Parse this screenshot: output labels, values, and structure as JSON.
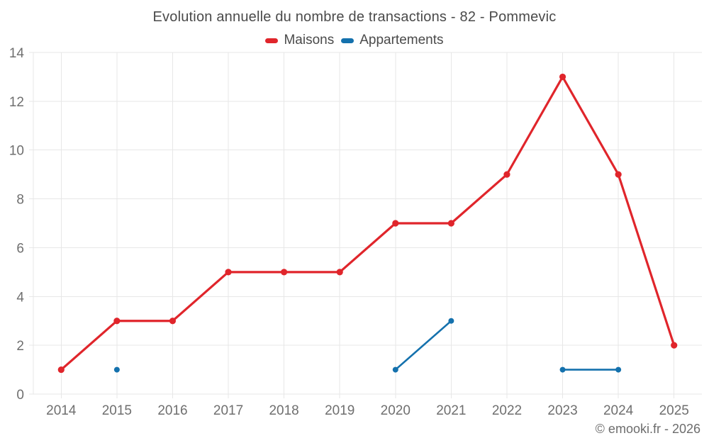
{
  "title": "Evolution annuelle du nombre de transactions - 82 - Pommevic",
  "legend": {
    "items": [
      {
        "label": "Maisons",
        "color": "#e0252b"
      },
      {
        "label": "Appartements",
        "color": "#1471ad"
      }
    ]
  },
  "footer": "© emooki.fr - 2026",
  "chart_data": {
    "type": "line",
    "title": "Evolution annuelle du nombre de transactions - 82 - Pommevic",
    "categories": [
      "2014",
      "2015",
      "2016",
      "2017",
      "2018",
      "2019",
      "2020",
      "2021",
      "2022",
      "2023",
      "2024",
      "2025"
    ],
    "series": [
      {
        "name": "Maisons",
        "color": "#e0252b",
        "line_width": 3.2,
        "marker_radius": 4.6,
        "values": [
          1,
          3,
          3,
          5,
          5,
          5,
          7,
          7,
          9,
          13,
          9,
          2
        ]
      },
      {
        "name": "Appartements",
        "color": "#1471ad",
        "line_width": 2.6,
        "marker_radius": 4.0,
        "values": [
          null,
          1,
          null,
          null,
          null,
          null,
          1,
          3,
          null,
          1,
          1,
          null
        ]
      }
    ],
    "xlabel": "",
    "ylabel": "",
    "ylim": [
      0,
      14
    ],
    "yticks": [
      0,
      2,
      4,
      6,
      8,
      10,
      12,
      14
    ],
    "grid": true,
    "legend_position": "top",
    "notes": "gaps in Appartements series break the line; isolated points drawn as dots"
  },
  "colors": {
    "grid": "#e7e7e7",
    "axis_labels": "#6f6f6f",
    "title_text": "#4a4a4a",
    "legend_text": "#4a4a4a",
    "footer_text": "#6d6d6d",
    "background": "#ffffff"
  }
}
